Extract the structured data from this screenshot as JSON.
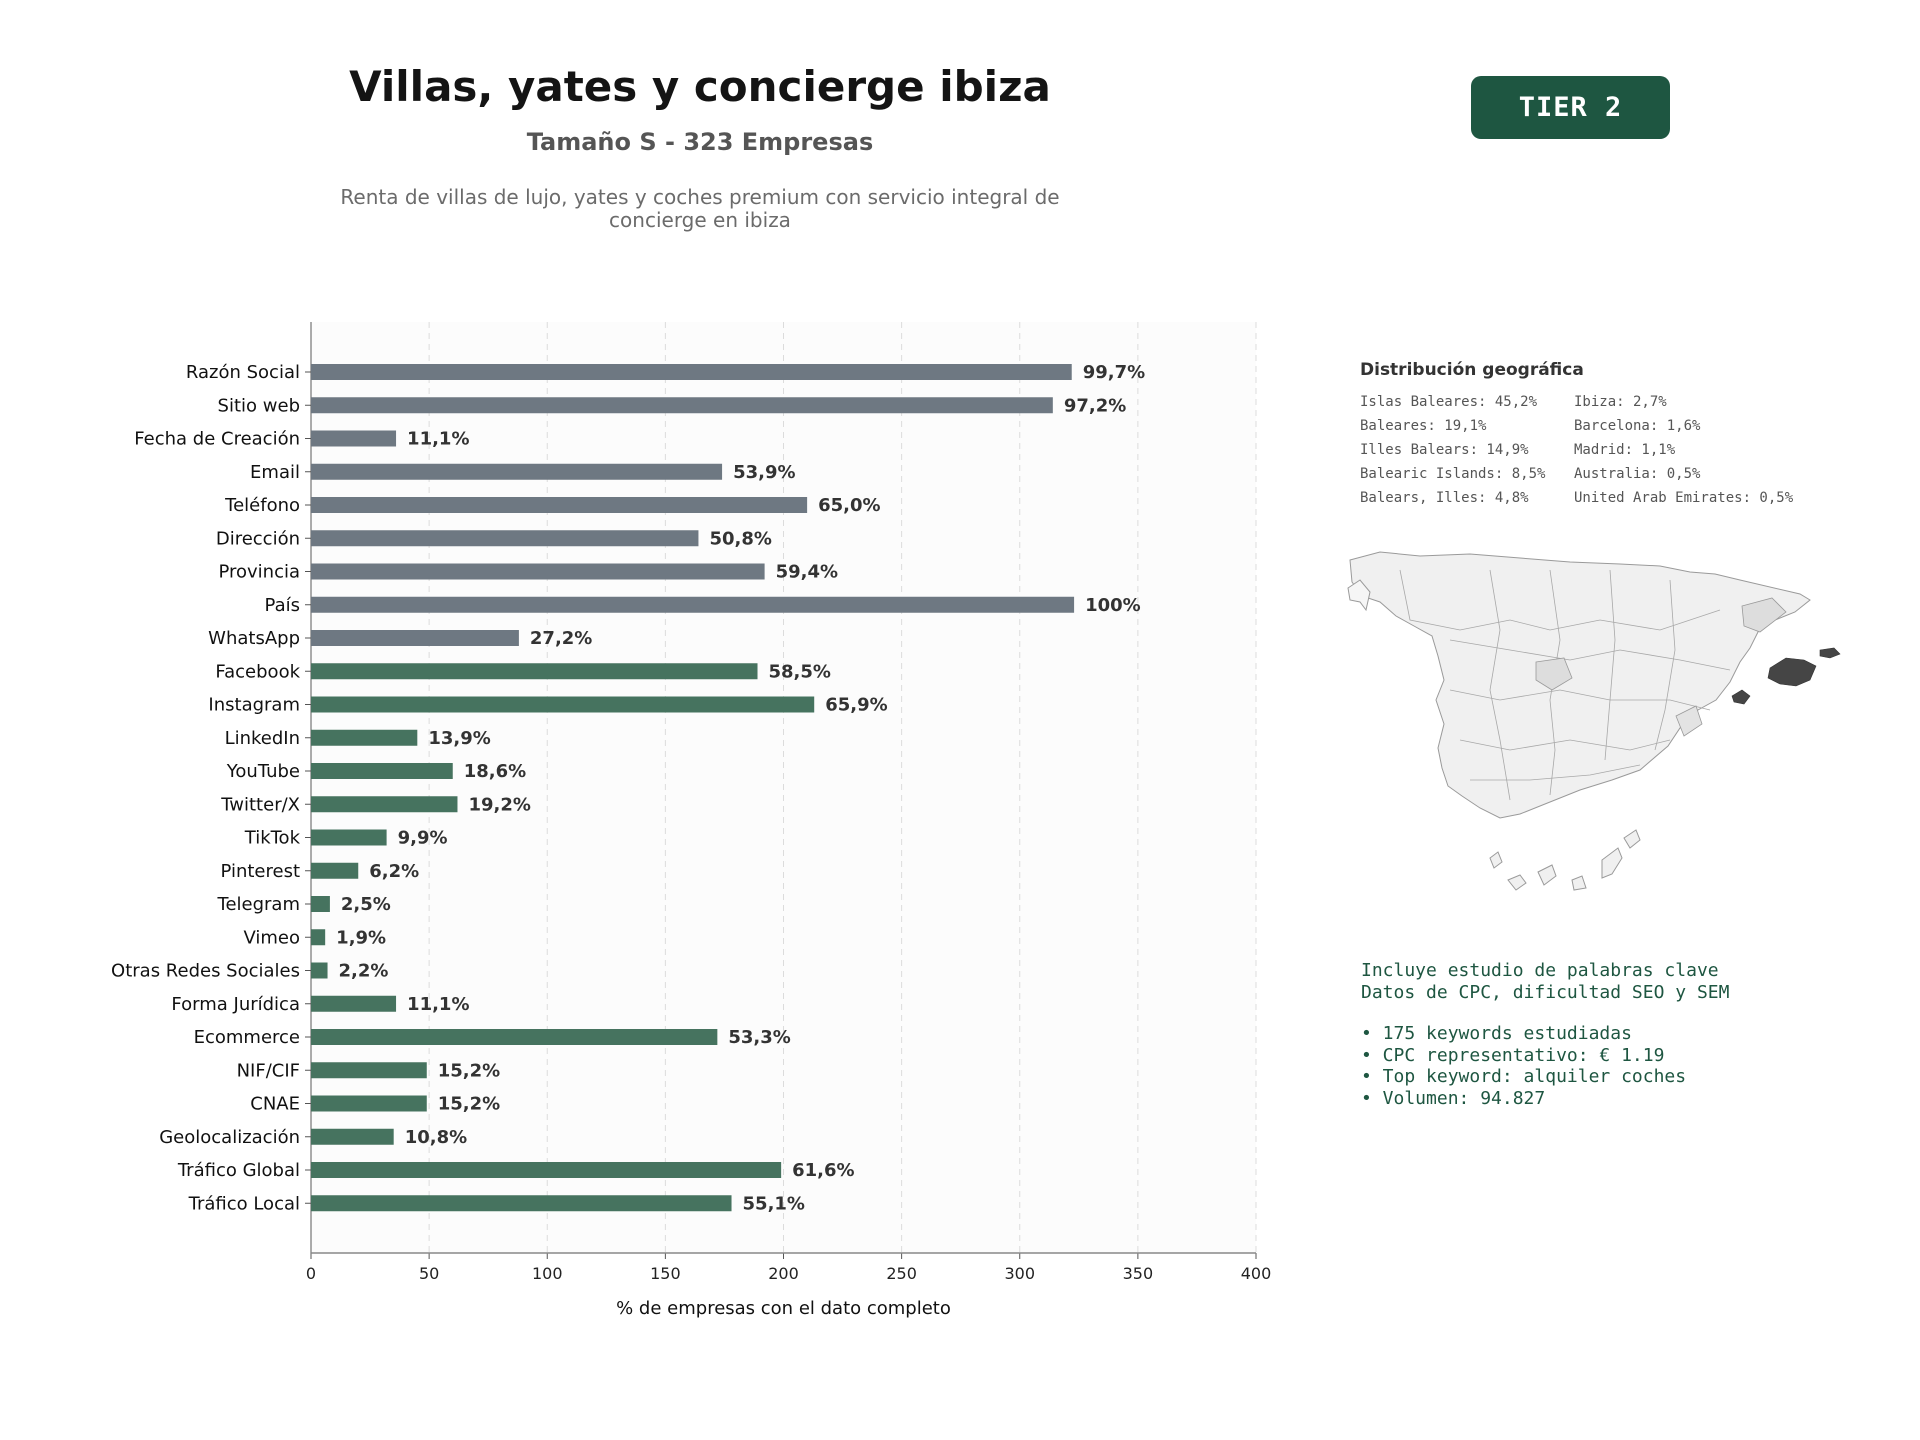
{
  "header": {
    "title": "Villas, yates y concierge ibiza",
    "subtitle": "Tamaño S - 323 Empresas",
    "description": "Renta de villas de lujo, yates y coches premium con servicio integral de concierge en ibiza",
    "tier_label": "TIER 2"
  },
  "colors": {
    "accent": "#1e5641",
    "bar_gray": "#6e7882",
    "bar_green": "#46735f",
    "highlight_region": "#454545",
    "map_fill": "#f0f0f0"
  },
  "chart_data": {
    "type": "bar",
    "orientation": "horizontal",
    "xlabel": "% de empresas con el dato completo",
    "xlim": [
      0,
      400
    ],
    "xticks": [
      "0",
      "50",
      "100",
      "150",
      "200",
      "250",
      "300",
      "350",
      "400"
    ],
    "grid": "vertical dashed",
    "categories": [
      "Razón Social",
      "Sitio web",
      "Fecha de Creación",
      "Email",
      "Teléfono",
      "Dirección",
      "Provincia",
      "País",
      "WhatsApp",
      "Facebook",
      "Instagram",
      "LinkedIn",
      "YouTube",
      "Twitter/X",
      "TikTok",
      "Pinterest",
      "Telegram",
      "Vimeo",
      "Otras Redes Sociales",
      "Forma Jurídica",
      "Ecommerce",
      "NIF/CIF",
      "CNAE",
      "Geolocalización",
      "Tráfico Global",
      "Tráfico Local"
    ],
    "values": [
      322,
      314,
      36,
      174,
      210,
      164,
      192,
      323,
      88,
      189,
      213,
      45,
      60,
      62,
      32,
      20,
      8,
      6,
      7,
      36,
      172,
      49,
      49,
      35,
      199,
      178
    ],
    "labels": [
      "99,7%",
      "97,2%",
      "11,1%",
      "53,9%",
      "65,0%",
      "50,8%",
      "59,4%",
      "100%",
      "27,2%",
      "58,5%",
      "65,9%",
      "13,9%",
      "18,6%",
      "19,2%",
      "9,9%",
      "6,2%",
      "2,5%",
      "1,9%",
      "2,2%",
      "11,1%",
      "53,3%",
      "15,2%",
      "15,2%",
      "10,8%",
      "61,6%",
      "55,1%"
    ],
    "group": [
      "gray",
      "gray",
      "gray",
      "gray",
      "gray",
      "gray",
      "gray",
      "gray",
      "gray",
      "green",
      "green",
      "green",
      "green",
      "green",
      "green",
      "green",
      "green",
      "green",
      "green",
      "green",
      "green",
      "green",
      "green",
      "green",
      "green",
      "green"
    ]
  },
  "geo": {
    "title": "Distribución geográfica",
    "entries": [
      "Islas Baleares: 45,2%",
      "Ibiza: 2,7%",
      "Baleares: 19,1%",
      "Barcelona: 1,6%",
      "Illes Balears: 14,9%",
      "Madrid: 1,1%",
      "Balearic Islands: 8,5%",
      "Australia: 0,5%",
      "Balears, Illes: 4,8%",
      "United Arab Emirates: 0,5%"
    ]
  },
  "keywords": {
    "line1": "Incluye estudio de palabras clave",
    "line2": "Datos de CPC, dificultad SEO y SEM",
    "bullets": [
      "• 175 keywords estudiadas",
      "• CPC representativo: € 1.19",
      "• Top keyword: alquiler coches",
      "• Volumen: 94.827"
    ]
  }
}
